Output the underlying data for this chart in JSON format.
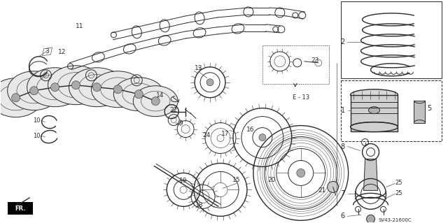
{
  "bg_color": "#ffffff",
  "line_color": "#2a2a2a",
  "diagram_code": "SV43-21600C",
  "figw": 6.4,
  "figh": 3.19,
  "dpi": 100
}
